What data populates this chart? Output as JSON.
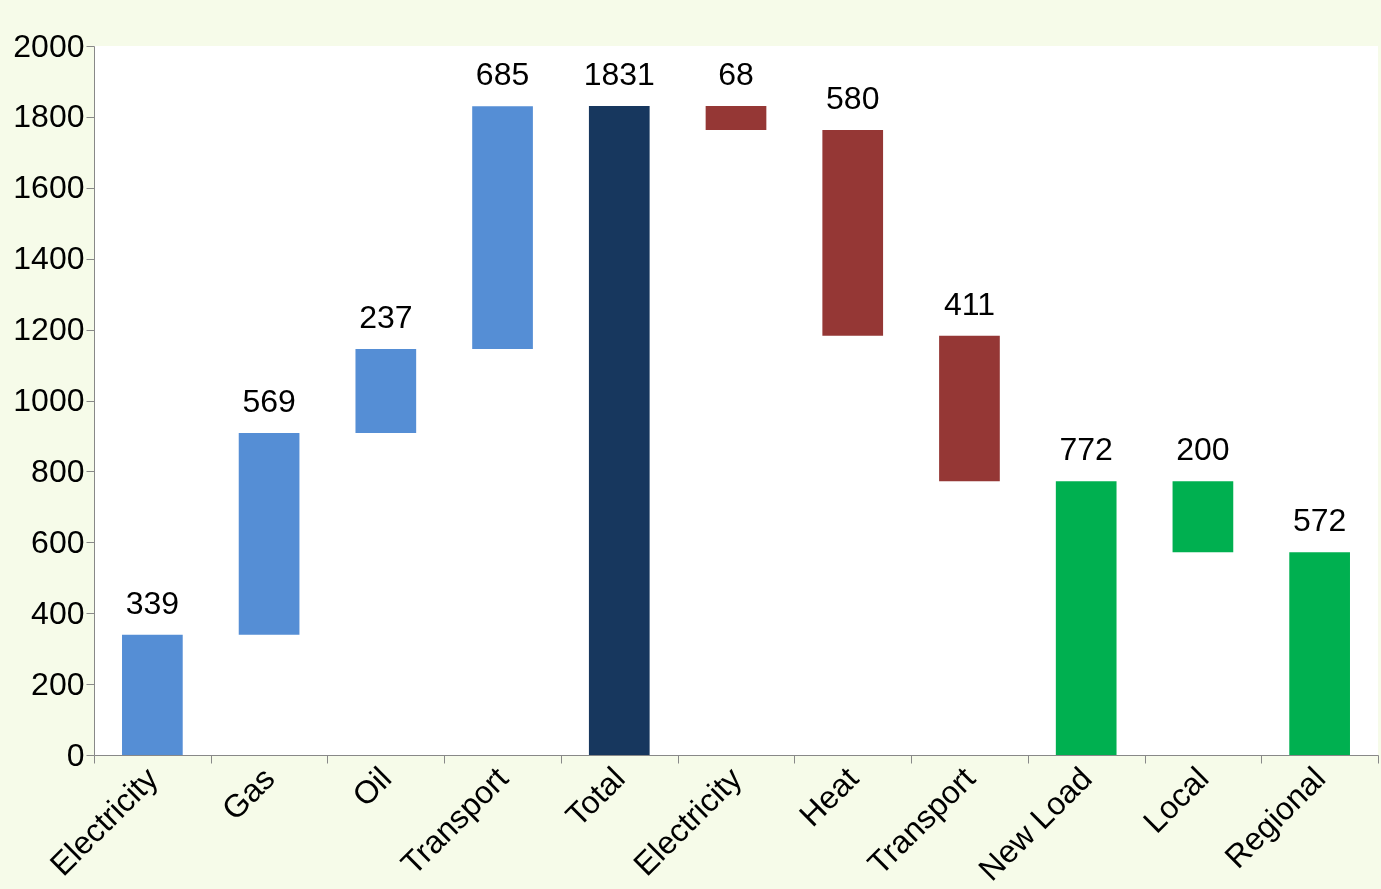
{
  "chart_data": {
    "type": "bar",
    "categories": [
      "Electricity",
      "Gas",
      "Oil",
      "Transport",
      "Total",
      "Electricity",
      "Heat",
      "Transport",
      "New Load",
      "Local",
      "Regional"
    ],
    "values": [
      339,
      569,
      237,
      685,
      1831,
      68,
      580,
      411,
      772,
      200,
      572
    ],
    "base": [
      0,
      339,
      908,
      1145,
      0,
      1763,
      1183,
      772,
      0,
      572,
      0
    ],
    "colors": [
      "#558ed5",
      "#558ed5",
      "#558ed5",
      "#558ed5",
      "#17375e",
      "#953735",
      "#953735",
      "#953735",
      "#00b050",
      "#00b050",
      "#00b050"
    ],
    "ylim": [
      0,
      2000
    ],
    "yticks": [
      0,
      200,
      400,
      600,
      800,
      1000,
      1200,
      1400,
      1600,
      1800,
      2000
    ],
    "grid": false,
    "data_labels": true
  }
}
